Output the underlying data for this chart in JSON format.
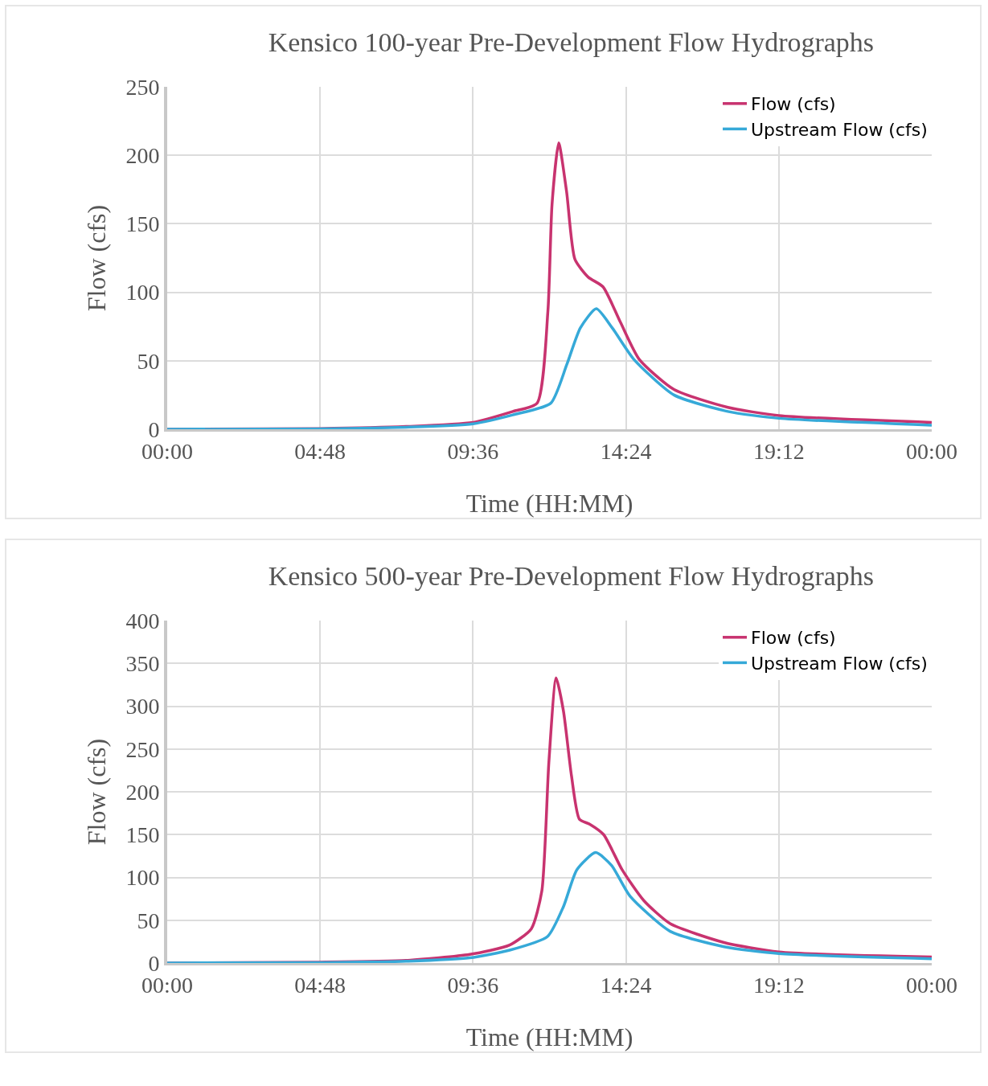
{
  "chart_data": [
    {
      "type": "line",
      "title": "Kensico 100-year Pre-Development Flow Hydrographs",
      "xlabel": "Time (HH:MM)",
      "ylabel": "Flow (cfs)",
      "xlim": [
        0,
        24
      ],
      "xticks": [
        {
          "value": 0,
          "label": "00:00"
        },
        {
          "value": 4.8,
          "label": "04:48"
        },
        {
          "value": 9.6,
          "label": "09:36"
        },
        {
          "value": 14.4,
          "label": "14:24"
        },
        {
          "value": 19.2,
          "label": "19:12"
        },
        {
          "value": 24,
          "label": "00:00"
        }
      ],
      "ylim": [
        0,
        250
      ],
      "yticks": [
        0,
        50,
        100,
        150,
        200,
        250
      ],
      "grid": true,
      "legend": "top right",
      "marker": "none",
      "line_style": "solid",
      "series": [
        {
          "name": "Flow (cfs)",
          "color": "#c8336f",
          "x": [
            0,
            4.8,
            7.5,
            9.6,
            10.85,
            11.61,
            11.95,
            12.08,
            12.29,
            12.54,
            12.8,
            13.22,
            13.68,
            14.23,
            14.82,
            15.91,
            17.6,
            19.2,
            24
          ],
          "values": [
            0,
            0.5,
            2,
            5,
            13,
            19,
            86,
            164,
            209,
            173,
            124,
            111,
            104,
            78,
            51,
            29,
            16,
            10,
            5
          ]
        },
        {
          "name": "Upstream Flow (cfs)",
          "color": "#36a9d8",
          "x": [
            0,
            4.8,
            7.5,
            9.6,
            10.85,
            12.04,
            12.54,
            12.97,
            13.47,
            13.97,
            14.65,
            15.91,
            17.6,
            19.2,
            24
          ],
          "values": [
            0,
            0.3,
            1.5,
            4,
            10.5,
            19,
            47,
            74,
            88,
            74,
            51,
            25,
            13,
            8,
            3
          ]
        }
      ]
    },
    {
      "type": "line",
      "title": "Kensico 500-year Pre-Development Flow Hydrographs",
      "xlabel": "Time (HH:MM)",
      "ylabel": "Flow (cfs)",
      "xlim": [
        0,
        24
      ],
      "xticks": [
        {
          "value": 0,
          "label": "00:00"
        },
        {
          "value": 4.8,
          "label": "04:48"
        },
        {
          "value": 9.6,
          "label": "09:36"
        },
        {
          "value": 14.4,
          "label": "14:24"
        },
        {
          "value": 19.2,
          "label": "19:12"
        },
        {
          "value": 24,
          "label": "00:00"
        }
      ],
      "ylim": [
        0,
        400
      ],
      "yticks": [
        0,
        50,
        100,
        150,
        200,
        250,
        300,
        350,
        400
      ],
      "grid": true,
      "legend": "top right",
      "marker": "none",
      "line_style": "solid",
      "series": [
        {
          "name": "Flow (cfs)",
          "color": "#c8336f",
          "x": [
            0,
            4.8,
            7.5,
            9.5,
            10.75,
            11.43,
            11.76,
            11.98,
            12.21,
            12.44,
            12.69,
            12.94,
            13.27,
            13.7,
            14.28,
            14.96,
            15.79,
            17.48,
            19.2,
            24
          ],
          "values": [
            0,
            1,
            3,
            10,
            21,
            40,
            84,
            234,
            333,
            294,
            219,
            168,
            162,
            150,
            109,
            73,
            46,
            24,
            13,
            7
          ]
        },
        {
          "name": "Upstream Flow (cfs)",
          "color": "#36a9d8",
          "x": [
            0,
            4.8,
            7.5,
            9.5,
            10.75,
            11.94,
            12.44,
            12.86,
            13.45,
            13.95,
            14.53,
            15.79,
            17.48,
            19.2,
            24
          ],
          "values": [
            0,
            0.5,
            2,
            6,
            15,
            31,
            66,
            109,
            129,
            114,
            78,
            37,
            19,
            11,
            5
          ]
        }
      ]
    }
  ]
}
